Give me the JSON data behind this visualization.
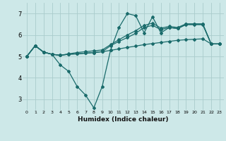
{
  "xlabel": "Humidex (Indice chaleur)",
  "xlim": [
    -0.5,
    23.5
  ],
  "ylim": [
    2.5,
    7.5
  ],
  "yticks": [
    3,
    4,
    5,
    6,
    7
  ],
  "xticks": [
    0,
    1,
    2,
    3,
    4,
    5,
    6,
    7,
    8,
    9,
    10,
    11,
    12,
    13,
    14,
    15,
    16,
    17,
    18,
    19,
    20,
    21,
    22,
    23
  ],
  "bg_color": "#cde8e8",
  "grid_color": "#aacccc",
  "line_color": "#1a6b6b",
  "lines": [
    {
      "x": [
        0,
        1,
        2,
        3,
        4,
        5,
        6,
        7,
        8,
        9,
        10,
        11,
        12,
        13,
        14,
        15,
        16,
        17,
        18,
        19,
        20,
        21,
        22,
        23
      ],
      "y": [
        5.0,
        5.5,
        5.2,
        5.1,
        5.05,
        5.1,
        5.12,
        5.15,
        5.18,
        5.22,
        5.28,
        5.35,
        5.42,
        5.48,
        5.55,
        5.6,
        5.65,
        5.7,
        5.75,
        5.78,
        5.8,
        5.82,
        5.58,
        5.58
      ]
    },
    {
      "x": [
        0,
        1,
        2,
        3,
        4,
        5,
        6,
        7,
        8,
        9,
        10,
        11,
        12,
        13,
        14,
        15,
        16,
        17,
        18,
        19,
        20,
        21,
        22,
        23
      ],
      "y": [
        5.0,
        5.5,
        5.2,
        5.1,
        4.6,
        4.3,
        3.6,
        3.2,
        2.6,
        3.6,
        5.3,
        6.35,
        7.0,
        6.9,
        6.1,
        6.85,
        6.1,
        6.35,
        6.3,
        6.5,
        6.5,
        6.5,
        5.58,
        5.58
      ]
    },
    {
      "x": [
        0,
        1,
        2,
        3,
        4,
        5,
        6,
        7,
        8,
        9,
        10,
        11,
        12,
        13,
        14,
        15,
        16,
        17,
        18,
        19,
        20,
        21,
        22,
        23
      ],
      "y": [
        5.0,
        5.5,
        5.2,
        5.1,
        5.05,
        5.1,
        5.12,
        5.15,
        5.18,
        5.22,
        5.5,
        5.7,
        5.88,
        6.08,
        6.35,
        6.45,
        6.25,
        6.35,
        6.3,
        6.48,
        6.48,
        6.48,
        5.58,
        5.58
      ]
    },
    {
      "x": [
        0,
        1,
        2,
        3,
        4,
        5,
        6,
        7,
        8,
        9,
        10,
        11,
        12,
        13,
        14,
        15,
        16,
        17,
        18,
        19,
        20,
        21,
        22,
        23
      ],
      "y": [
        5.0,
        5.5,
        5.2,
        5.1,
        5.05,
        5.12,
        5.18,
        5.22,
        5.26,
        5.3,
        5.55,
        5.78,
        6.0,
        6.2,
        6.45,
        6.55,
        6.32,
        6.4,
        6.35,
        6.52,
        6.52,
        6.52,
        5.58,
        5.58
      ]
    }
  ]
}
